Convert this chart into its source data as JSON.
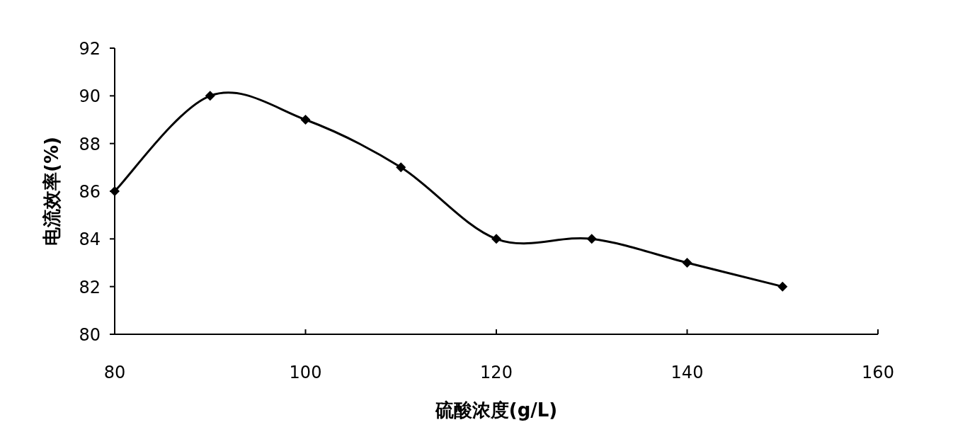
{
  "chart_data": {
    "type": "line",
    "xlabel": "硫酸浓度(g/L)",
    "ylabel": "电流效率(%)",
    "x": [
      80,
      90,
      100,
      110,
      120,
      130,
      140,
      150
    ],
    "series": [
      {
        "color": "#000000",
        "values": [
          86,
          90,
          89,
          87,
          84,
          84,
          83,
          82
        ]
      }
    ],
    "xlim": [
      80,
      160
    ],
    "xticks": [
      80,
      100,
      120,
      140,
      160
    ],
    "ylim": [
      80,
      92
    ],
    "yticks": [
      80,
      82,
      84,
      86,
      88,
      90,
      92
    ],
    "marker": "diamond",
    "line_style": "solid"
  }
}
